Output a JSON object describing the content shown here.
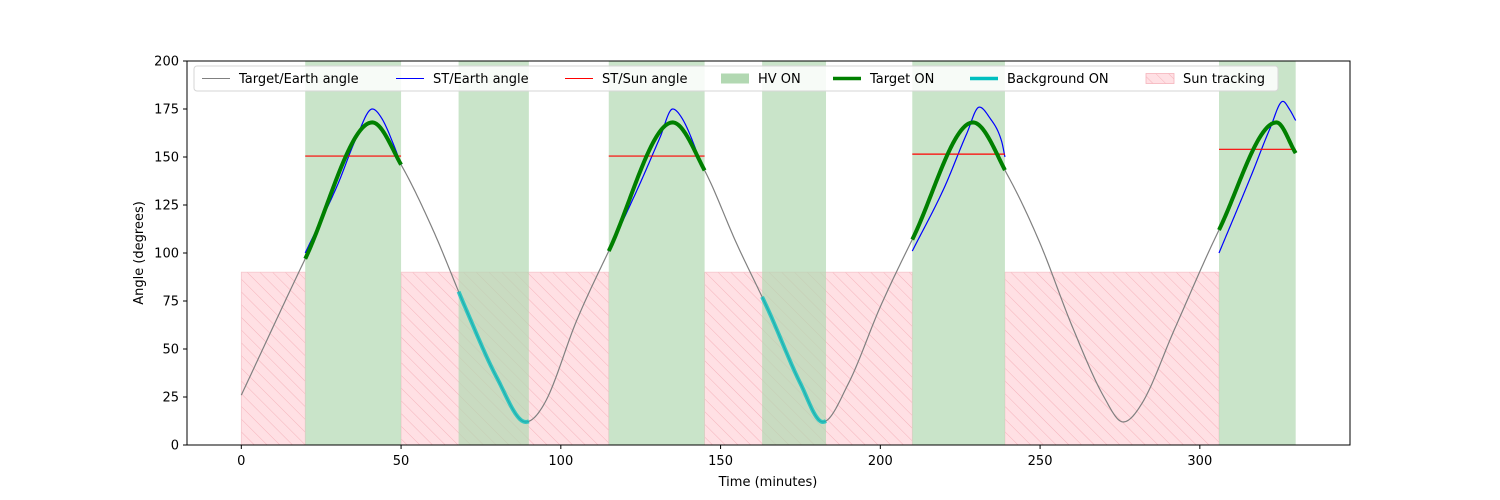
{
  "chart_data": {
    "type": "line",
    "xlabel": "Time (minutes)",
    "ylabel": "Angle (degrees)",
    "xlim": [
      -17,
      347
    ],
    "ylim": [
      0,
      200
    ],
    "x_ticks": [
      0,
      50,
      100,
      150,
      200,
      250,
      300
    ],
    "y_ticks": [
      0,
      25,
      50,
      75,
      100,
      125,
      150,
      175,
      200
    ],
    "grid": false,
    "legend_position": "top",
    "colors": {
      "target_earth": "#808080",
      "st_earth": "#0000ff",
      "st_sun": "#ff0000",
      "hv_on": "#b2d8b2",
      "target_on": "#008000",
      "background_on": "#00bfbf",
      "sun_tracking_fill": "#ffe0e4",
      "sun_tracking_hatch": "#f7b6be"
    },
    "legend": [
      {
        "label": "Target/Earth angle",
        "kind": "line",
        "color": "#808080",
        "width": 1
      },
      {
        "label": "ST/Earth angle",
        "kind": "line",
        "color": "#0000ff",
        "width": 1
      },
      {
        "label": "ST/Sun angle",
        "kind": "line",
        "color": "#ff0000",
        "width": 1
      },
      {
        "label": "HV ON",
        "kind": "patch",
        "color": "#b2d8b2"
      },
      {
        "label": "Target ON",
        "kind": "line",
        "color": "#008000",
        "width": 3.5
      },
      {
        "label": "Background ON",
        "kind": "line",
        "color": "#00bfbf",
        "width": 3.5
      },
      {
        "label": "Sun tracking",
        "kind": "hatch",
        "color": "#ffe0e4"
      }
    ],
    "target_earth_angle": {
      "name": "Target/Earth angle",
      "points": [
        [
          0,
          26
        ],
        [
          20,
          97
        ],
        [
          41,
          168
        ],
        [
          50,
          146
        ],
        [
          60,
          112
        ],
        [
          70,
          72
        ],
        [
          80,
          35
        ],
        [
          89,
          12
        ],
        [
          95,
          22
        ],
        [
          105,
          65
        ],
        [
          115,
          101
        ],
        [
          135,
          168
        ],
        [
          145,
          143
        ],
        [
          155,
          105
        ],
        [
          165,
          70
        ],
        [
          175,
          32
        ],
        [
          182,
          12
        ],
        [
          190,
          32
        ],
        [
          200,
          72
        ],
        [
          210,
          107
        ],
        [
          229,
          168
        ],
        [
          240,
          140
        ],
        [
          250,
          105
        ],
        [
          260,
          62
        ],
        [
          270,
          25
        ],
        [
          276,
          12
        ],
        [
          282,
          22
        ],
        [
          292,
          60
        ],
        [
          306,
          112
        ],
        [
          324,
          168
        ],
        [
          330,
          152
        ]
      ]
    },
    "hv_on_intervals": [
      [
        20,
        50
      ],
      [
        68,
        90
      ],
      [
        115,
        145
      ],
      [
        163,
        183
      ],
      [
        210,
        239
      ],
      [
        306,
        330
      ]
    ],
    "sun_tracking": {
      "y_range": [
        0,
        90
      ],
      "intervals": [
        [
          0,
          20
        ],
        [
          50,
          115
        ],
        [
          145,
          210
        ],
        [
          239,
          306
        ]
      ]
    },
    "st_earth_angle": [
      {
        "points": [
          [
            20,
            100
          ],
          [
            30,
            135
          ],
          [
            36,
            160
          ],
          [
            41,
            175
          ],
          [
            44,
            170
          ],
          [
            48,
            155
          ],
          [
            50,
            146
          ]
        ]
      },
      {
        "points": [
          [
            115,
            101
          ],
          [
            125,
            137
          ],
          [
            131,
            160
          ],
          [
            135,
            175
          ],
          [
            138,
            170
          ],
          [
            142,
            155
          ],
          [
            144,
            145
          ]
        ]
      },
      {
        "points": [
          [
            210,
            101
          ],
          [
            220,
            134
          ],
          [
            227,
            162
          ],
          [
            231,
            176
          ],
          [
            234,
            171
          ],
          [
            238,
            158
          ],
          [
            239,
            150
          ]
        ]
      },
      {
        "points": [
          [
            306,
            100
          ],
          [
            316,
            140
          ],
          [
            322,
            165
          ],
          [
            326,
            179
          ],
          [
            328,
            175
          ],
          [
            330,
            169
          ]
        ]
      }
    ],
    "st_sun_angle": [
      {
        "x": [
          20,
          50
        ],
        "y": 150.5
      },
      {
        "x": [
          115,
          145
        ],
        "y": 150.5
      },
      {
        "x": [
          210,
          239
        ],
        "y": 151.5
      },
      {
        "x": [
          306,
          330
        ],
        "y": 154
      }
    ],
    "target_on_segments": [
      {
        "x": [
          20,
          50
        ]
      },
      {
        "x": [
          115,
          145
        ]
      },
      {
        "x": [
          210,
          239
        ]
      },
      {
        "x": [
          306,
          330
        ]
      }
    ],
    "background_on_segments": [
      {
        "x": [
          68,
          90
        ]
      },
      {
        "x": [
          163,
          183
        ]
      }
    ]
  }
}
